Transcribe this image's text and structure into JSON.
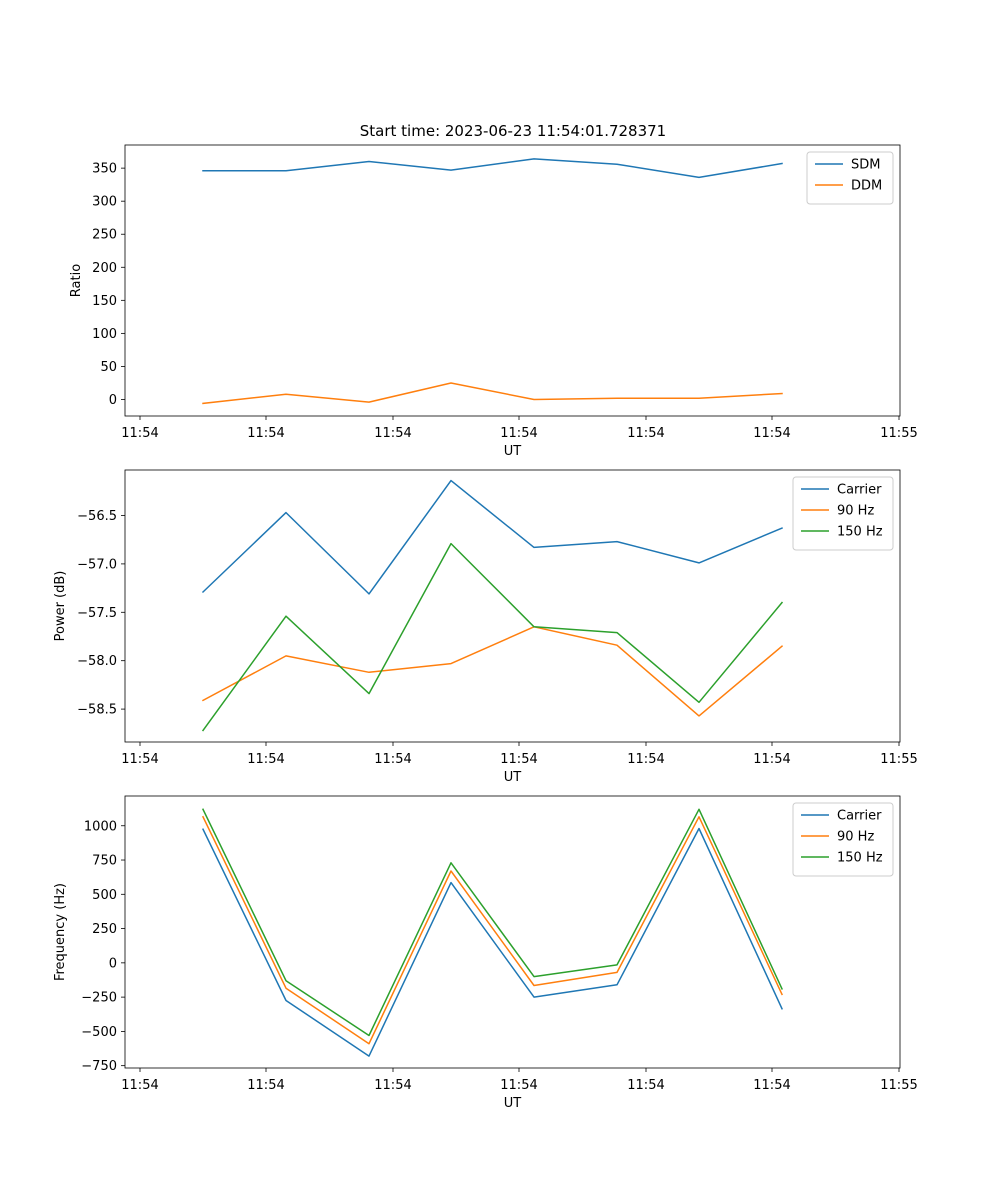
{
  "figure": {
    "title": "Start time: 2023-06-23 11:54:01.728371"
  },
  "chart_data": [
    {
      "type": "line",
      "ylabel": "Ratio",
      "xlabel": "UT",
      "x_tick_labels": [
        "11:54",
        "11:54",
        "11:54",
        "11:54",
        "11:54",
        "11:54",
        "11:55"
      ],
      "y_ticks": [
        0,
        50,
        100,
        150,
        200,
        250,
        300,
        350
      ],
      "ylim": [
        -25,
        385
      ],
      "legend_position": "top-right",
      "series": [
        {
          "name": "SDM",
          "color": "#1f77b4",
          "values": [
            346,
            346,
            360,
            347,
            364,
            356,
            336,
            357
          ]
        },
        {
          "name": "DDM",
          "color": "#ff7f0e",
          "values": [
            -6,
            8,
            -4,
            25,
            0,
            2,
            2,
            9
          ]
        }
      ]
    },
    {
      "type": "line",
      "ylabel": "Power (dB)",
      "xlabel": "UT",
      "x_tick_labels": [
        "11:54",
        "11:54",
        "11:54",
        "11:54",
        "11:54",
        "11:54",
        "11:55"
      ],
      "y_ticks": [
        -58.5,
        -58.0,
        -57.5,
        -57.0,
        -56.5
      ],
      "y_tick_labels": [
        "−58.5",
        "−58.0",
        "−57.5",
        "−57.0",
        "−56.5"
      ],
      "ylim": [
        -58.84,
        -56.03
      ],
      "legend_position": "top-right",
      "series": [
        {
          "name": "Carrier",
          "color": "#1f77b4",
          "values": [
            -57.29,
            -56.47,
            -57.31,
            -56.14,
            -56.83,
            -56.77,
            -56.99,
            -56.63
          ]
        },
        {
          "name": "90 Hz",
          "color": "#ff7f0e",
          "values": [
            -58.41,
            -57.95,
            -58.12,
            -58.03,
            -57.65,
            -57.84,
            -58.57,
            -57.85
          ]
        },
        {
          "name": "150 Hz",
          "color": "#2ca02c",
          "values": [
            -58.72,
            -57.54,
            -58.34,
            -56.79,
            -57.65,
            -57.71,
            -58.43,
            -57.4
          ]
        }
      ]
    },
    {
      "type": "line",
      "ylabel": "Frequency (Hz)",
      "xlabel": "UT",
      "x_tick_labels": [
        "11:54",
        "11:54",
        "11:54",
        "11:54",
        "11:54",
        "11:54",
        "11:55"
      ],
      "y_ticks": [
        -750,
        -500,
        -250,
        0,
        250,
        500,
        750,
        1000
      ],
      "y_tick_labels": [
        "−750",
        "−500",
        "−250",
        "0",
        "250",
        "500",
        "750",
        "1000"
      ],
      "ylim": [
        -767,
        1217
      ],
      "legend_position": "top-right",
      "series": [
        {
          "name": "Carrier",
          "color": "#1f77b4",
          "values": [
            975,
            -275,
            -680,
            585,
            -250,
            -160,
            980,
            -335
          ]
        },
        {
          "name": "90 Hz",
          "color": "#ff7f0e",
          "values": [
            1065,
            -185,
            -590,
            670,
            -165,
            -70,
            1065,
            -230
          ]
        },
        {
          "name": "150 Hz",
          "color": "#2ca02c",
          "values": [
            1120,
            -130,
            -530,
            730,
            -100,
            -15,
            1120,
            -190
          ]
        }
      ]
    }
  ]
}
